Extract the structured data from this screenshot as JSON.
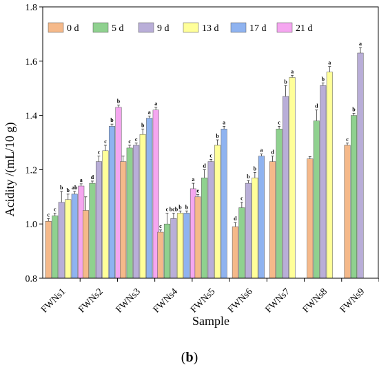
{
  "chart_data": {
    "type": "bar",
    "xlabel": "Sample",
    "ylabel": "Acidity /(mL/10 g)",
    "ylim": [
      0.8,
      1.8
    ],
    "yticks": [
      "0.8",
      "1.0",
      "1.2",
      "1.4",
      "1.6",
      "1.8"
    ],
    "categories": [
      "FWNs1",
      "FWNs2",
      "FWNs3",
      "FWNs4",
      "FWNs5",
      "FWNs6",
      "FWNs7",
      "FWNs8",
      "FWNs9"
    ],
    "legend_position": "top",
    "series": [
      {
        "name": "0 d",
        "color": "#f5b98a",
        "values": [
          1.01,
          1.05,
          1.23,
          0.97,
          1.1,
          0.99,
          1.23,
          1.24,
          1.29
        ],
        "errors": [
          0.01,
          0.05,
          0.02,
          0.008,
          0.008,
          0.015,
          0.02,
          0.008,
          0.008
        ],
        "labels": [
          "c",
          "",
          "",
          "c",
          "e",
          "d",
          "d",
          "",
          "c"
        ]
      },
      {
        "name": "5 d",
        "color": "#8fd18f",
        "values": [
          1.03,
          1.15,
          1.28,
          1.0,
          1.17,
          1.06,
          1.35,
          1.38,
          1.4
        ],
        "errors": [
          0.01,
          0.008,
          0.01,
          0.04,
          0.03,
          0.02,
          0.01,
          0.04,
          0.008
        ],
        "labels": [
          "c",
          "d",
          "c",
          "c",
          "d",
          "c",
          "c",
          "d",
          "b"
        ]
      },
      {
        "name": "9 d",
        "color": "#b9aed8",
        "values": [
          1.08,
          1.23,
          1.29,
          1.02,
          1.23,
          1.15,
          1.47,
          1.51,
          1.63
        ],
        "errors": [
          0.04,
          0.02,
          0.008,
          0.02,
          0.008,
          0.01,
          0.04,
          0.01,
          0.02
        ],
        "labels": [
          "b",
          "c",
          "c",
          "bcb",
          "c",
          "b",
          "b",
          "b",
          "a"
        ]
      },
      {
        "name": "13 d",
        "color": "#ffff99",
        "values": [
          1.09,
          1.27,
          1.33,
          1.04,
          1.29,
          1.17,
          1.54,
          1.56,
          null
        ],
        "errors": [
          0.02,
          0.02,
          0.02,
          0.008,
          0.02,
          0.02,
          0.008,
          0.02,
          null
        ],
        "labels": [
          "b",
          "c",
          "b",
          "b",
          "b",
          "b",
          "a",
          "a",
          ""
        ]
      },
      {
        "name": "17 d",
        "color": "#8fb3f0",
        "values": [
          1.11,
          1.36,
          1.39,
          1.04,
          1.35,
          1.25,
          null,
          null,
          null
        ],
        "errors": [
          0.01,
          0.008,
          0.008,
          0.008,
          0.01,
          0.008,
          null,
          null,
          null
        ],
        "labels": [
          "ab",
          "b",
          "a",
          "b",
          "a",
          "a",
          "",
          "",
          ""
        ]
      },
      {
        "name": "21 d",
        "color": "#f5a6f0",
        "values": [
          1.14,
          1.43,
          1.42,
          1.13,
          null,
          null,
          null,
          null,
          null
        ],
        "errors": [
          0.008,
          0.008,
          0.01,
          0.02,
          null,
          null,
          null,
          null,
          null
        ],
        "labels": [
          "a",
          "b",
          "a",
          "a",
          "",
          "",
          "",
          "",
          ""
        ]
      }
    ]
  },
  "caption": {
    "open": "(",
    "letter": "b",
    "close": ")"
  }
}
